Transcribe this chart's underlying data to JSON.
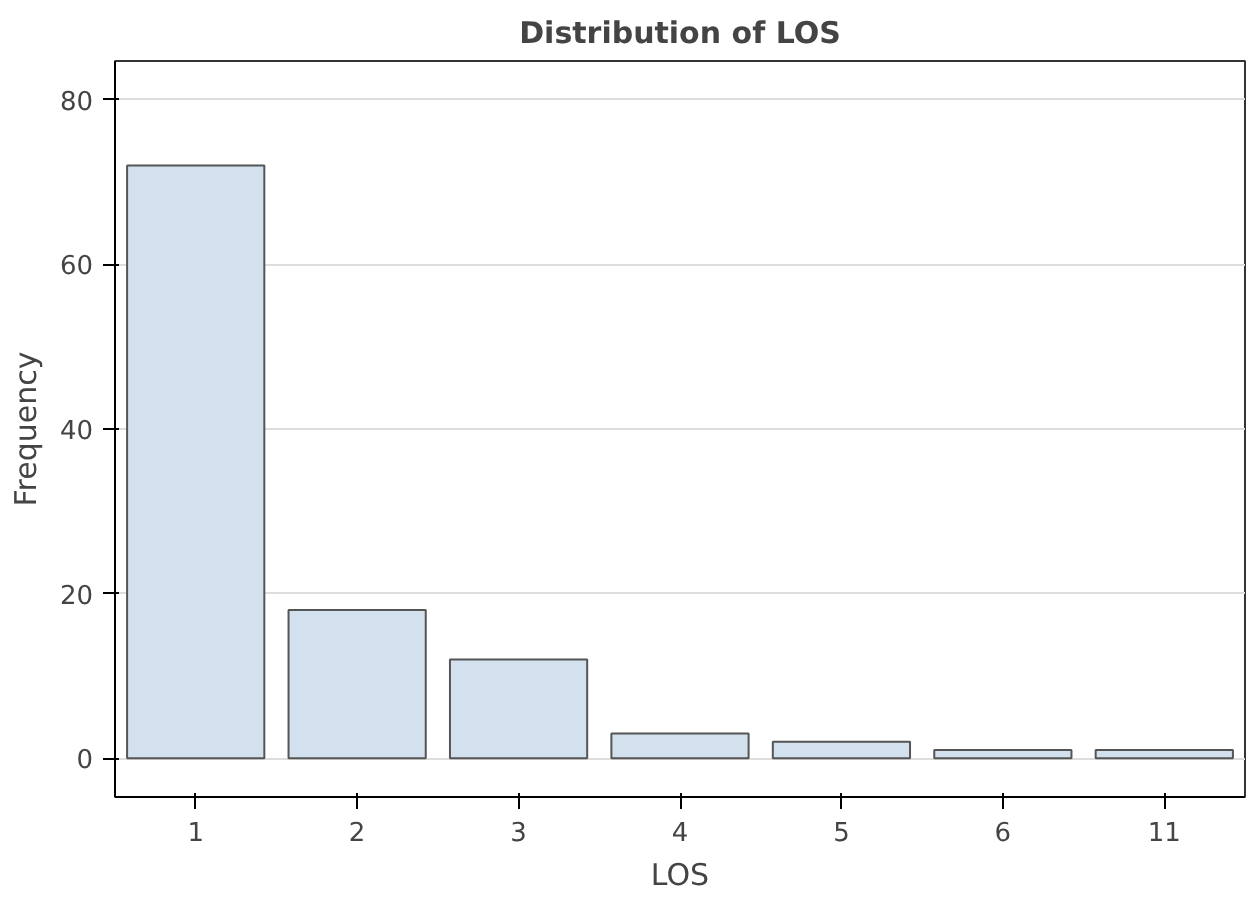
{
  "chart_data": {
    "type": "bar",
    "title": "Distribution of LOS",
    "xlabel": "LOS",
    "ylabel": "Frequency",
    "categories": [
      "1",
      "2",
      "3",
      "4",
      "5",
      "6",
      "11"
    ],
    "values": [
      72,
      18,
      12,
      3,
      2,
      1,
      1
    ],
    "color": "#d3e0ee",
    "ylim": [
      -4.7,
      84.7
    ],
    "yticks": [
      0,
      20,
      40,
      60,
      80
    ],
    "grid": "y"
  }
}
